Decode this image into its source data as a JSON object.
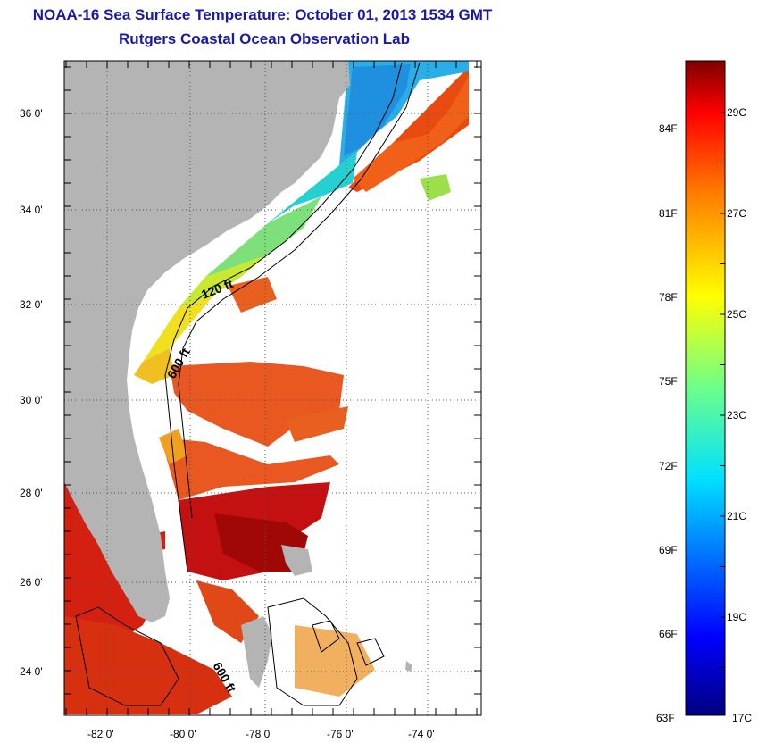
{
  "title": "NOAA-16 Sea Surface Temperature:  October 01, 2013 1534 GMT",
  "subtitle": "Rutgers Coastal Ocean Observation Lab",
  "map": {
    "lon_range": [
      -83,
      -73
    ],
    "lat_range": [
      23,
      37
    ],
    "lat_ticks": [
      "24 0'",
      "26 0'",
      "28 0'",
      "30 0'",
      "32 0'",
      "34 0'",
      "36 0'"
    ],
    "lon_ticks": [
      "-82 0'",
      "-80 0'",
      "-78 0'",
      "-76 0'",
      "-74 0'"
    ],
    "contour_labels": [
      "120 ft",
      "600 ft",
      "600 ft"
    ],
    "grid": "dotted"
  },
  "colorbar": {
    "min_c": 17,
    "max_c": 30,
    "celsius_labels": [
      "29C",
      "27C",
      "25C",
      "23C",
      "21C",
      "19C",
      "17C"
    ],
    "fahrenheit_labels": [
      "84F",
      "81F",
      "78F",
      "75F",
      "72F",
      "69F",
      "66F",
      "63F"
    ]
  },
  "colors": {
    "land": "#b4b4b4",
    "title": "#1a1aa8"
  }
}
